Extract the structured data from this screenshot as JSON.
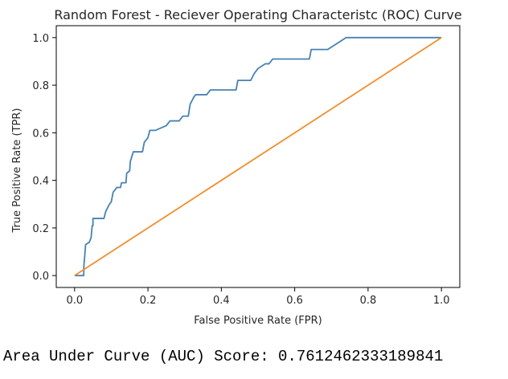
{
  "chart_data": {
    "type": "line",
    "title": "Random Forest - Reciever Operating Characteristc (ROC) Curve",
    "xlabel": "False Positive Rate (FPR)",
    "ylabel": "True Positive Rate (TPR)",
    "xlim": [
      -0.05,
      1.05
    ],
    "ylim": [
      -0.05,
      1.05
    ],
    "xticks": [
      0.0,
      0.2,
      0.4,
      0.6,
      0.8,
      1.0
    ],
    "yticks": [
      0.0,
      0.2,
      0.4,
      0.6,
      0.8,
      1.0
    ],
    "grid": false,
    "colors": {
      "roc_curve": "#4682b4",
      "diagonal": "#f28e2b"
    },
    "series": [
      {
        "points": [
          [
            0.0,
            0.0
          ],
          [
            0.025,
            0.0
          ],
          [
            0.025,
            0.035
          ],
          [
            0.028,
            0.09
          ],
          [
            0.03,
            0.13
          ],
          [
            0.04,
            0.14
          ],
          [
            0.045,
            0.16
          ],
          [
            0.048,
            0.21
          ],
          [
            0.05,
            0.21
          ],
          [
            0.05,
            0.24
          ],
          [
            0.06,
            0.24
          ],
          [
            0.08,
            0.24
          ],
          [
            0.085,
            0.27
          ],
          [
            0.095,
            0.3
          ],
          [
            0.1,
            0.31
          ],
          [
            0.105,
            0.35
          ],
          [
            0.115,
            0.37
          ],
          [
            0.125,
            0.37
          ],
          [
            0.128,
            0.39
          ],
          [
            0.14,
            0.39
          ],
          [
            0.142,
            0.43
          ],
          [
            0.15,
            0.44
          ],
          [
            0.152,
            0.48
          ],
          [
            0.16,
            0.52
          ],
          [
            0.17,
            0.52
          ],
          [
            0.185,
            0.52
          ],
          [
            0.19,
            0.56
          ],
          [
            0.2,
            0.58
          ],
          [
            0.205,
            0.61
          ],
          [
            0.22,
            0.61
          ],
          [
            0.235,
            0.62
          ],
          [
            0.25,
            0.63
          ],
          [
            0.26,
            0.65
          ],
          [
            0.285,
            0.65
          ],
          [
            0.295,
            0.67
          ],
          [
            0.31,
            0.67
          ],
          [
            0.315,
            0.72
          ],
          [
            0.325,
            0.75
          ],
          [
            0.33,
            0.76
          ],
          [
            0.36,
            0.76
          ],
          [
            0.37,
            0.78
          ],
          [
            0.41,
            0.78
          ],
          [
            0.44,
            0.78
          ],
          [
            0.445,
            0.82
          ],
          [
            0.48,
            0.82
          ],
          [
            0.49,
            0.85
          ],
          [
            0.5,
            0.87
          ],
          [
            0.52,
            0.89
          ],
          [
            0.53,
            0.89
          ],
          [
            0.54,
            0.91
          ],
          [
            0.62,
            0.91
          ],
          [
            0.64,
            0.91
          ],
          [
            0.645,
            0.95
          ],
          [
            0.69,
            0.95
          ],
          [
            0.74,
            1.0
          ],
          [
            1.0,
            1.0
          ]
        ]
      },
      {
        "points": [
          [
            0.0,
            0.0
          ],
          [
            1.0,
            1.0
          ]
        ]
      }
    ]
  },
  "footer": {
    "auc_text": "Area Under Curve (AUC) Score: 0.7612462333189841"
  }
}
